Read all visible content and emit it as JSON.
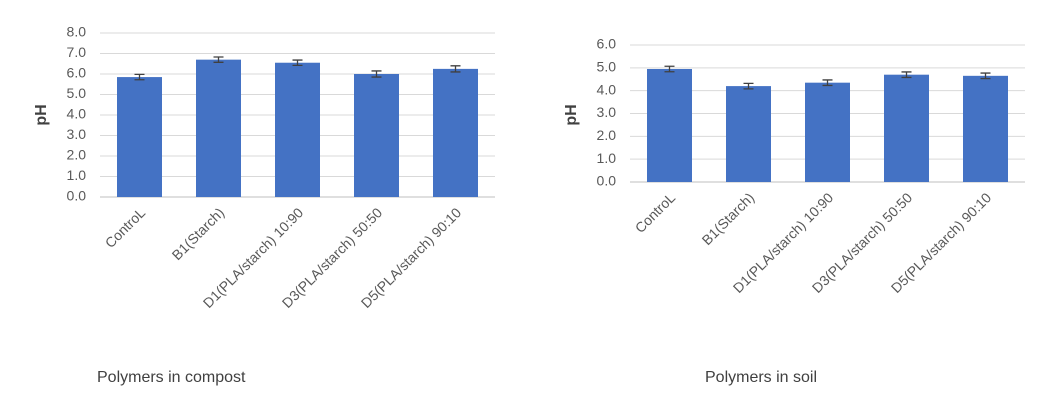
{
  "chart_data": [
    {
      "type": "bar",
      "y_label": "pH",
      "x_label": "Polymers in compost",
      "categories": [
        "ControL",
        "B1(Starch)",
        "D1(PLA/starch) 10:90",
        "D3(PLA/starch) 50:50",
        "D5(PLA/starch) 90:10"
      ],
      "values": [
        5.85,
        6.7,
        6.55,
        6.0,
        6.25
      ],
      "errors": [
        0.13,
        0.13,
        0.13,
        0.15,
        0.15
      ],
      "color": "#4472c4",
      "ylim": [
        0,
        8
      ],
      "yticks": [
        {
          "value": 0,
          "label": "0.0"
        },
        {
          "value": 1,
          "label": "1.0"
        },
        {
          "value": 2,
          "label": "2.0"
        },
        {
          "value": 3,
          "label": "3.0"
        },
        {
          "value": 4,
          "label": "4.0"
        },
        {
          "value": 5,
          "label": "5.0"
        },
        {
          "value": 6,
          "label": "6.0"
        },
        {
          "value": 7,
          "label": "7.0"
        },
        {
          "value": 8,
          "label": "8.0"
        }
      ],
      "grid": true
    },
    {
      "type": "bar",
      "y_label": "pH",
      "x_label": "Polymers in soil",
      "categories": [
        "ControL",
        "B1(Starch)",
        "D1(PLA/starch) 10:90",
        "D3(PLA/starch) 50:50",
        "D5(PLA/starch) 90:10"
      ],
      "values": [
        4.95,
        4.2,
        4.35,
        4.7,
        4.65
      ],
      "errors": [
        0.12,
        0.12,
        0.12,
        0.12,
        0.12
      ],
      "color": "#4472c4",
      "ylim": [
        0,
        6
      ],
      "yticks": [
        {
          "value": 0,
          "label": "0.0"
        },
        {
          "value": 1,
          "label": "1.0"
        },
        {
          "value": 2,
          "label": "2.0"
        },
        {
          "value": 3,
          "label": "3.0"
        },
        {
          "value": 4,
          "label": "4.0"
        },
        {
          "value": 5,
          "label": "5.0"
        },
        {
          "value": 6,
          "label": "6.0"
        }
      ],
      "grid": true
    }
  ]
}
